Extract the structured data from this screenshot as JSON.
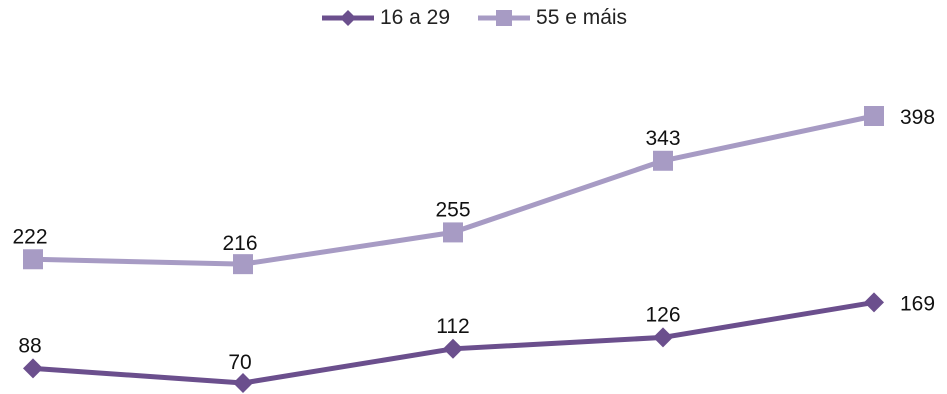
{
  "chart_data": {
    "type": "line",
    "categories": [
      "",
      "",
      "",
      "",
      ""
    ],
    "series": [
      {
        "name": "16 a 29",
        "values": [
          88,
          70,
          112,
          126,
          169
        ],
        "color": "#6b4f8d",
        "marker": "diamond"
      },
      {
        "name": "55 e máis",
        "values": [
          222,
          216,
          255,
          343,
          398
        ],
        "color": "#a79bc4",
        "marker": "square"
      }
    ],
    "title": "",
    "xlabel": "",
    "ylabel": "",
    "ylim": [
      70,
      400
    ],
    "grid": false,
    "legend": "top-center",
    "data_labels": true
  }
}
